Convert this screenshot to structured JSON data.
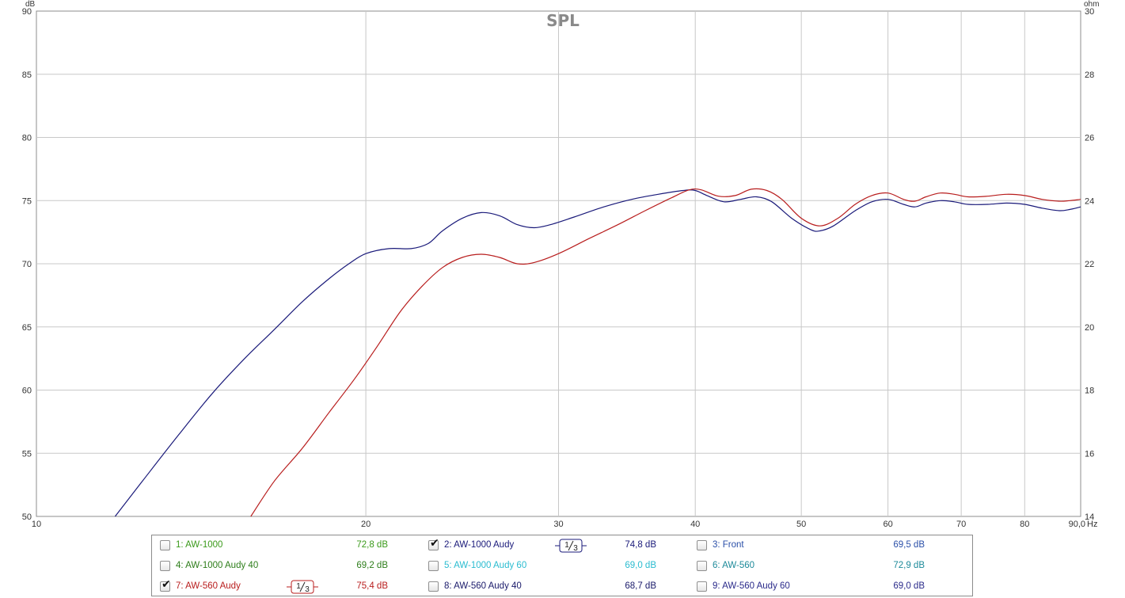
{
  "chart_data": {
    "type": "line",
    "title": "SPL",
    "x_scale": "log",
    "xlim": [
      10,
      90
    ],
    "x_ticks": [
      10,
      20,
      30,
      40,
      50,
      60,
      70,
      80
    ],
    "x_tick_labels": [
      "10",
      "20",
      "30",
      "40",
      "50",
      "60",
      "70",
      "80"
    ],
    "x_end_label": "90,0",
    "x_unit": "Hz",
    "ylim": [
      50,
      90
    ],
    "y_ticks": [
      50,
      55,
      60,
      65,
      70,
      75,
      80,
      85,
      90
    ],
    "y_unit": "dB",
    "y2lim": [
      14,
      30
    ],
    "y2_ticks": [
      14,
      16,
      18,
      20,
      22,
      24,
      26,
      28,
      30
    ],
    "y2_unit": "ohm",
    "grid": true,
    "series": [
      {
        "name": "2: AW-1000 Audy",
        "color": "#1a1a7a",
        "points": [
          [
            11.8,
            50
          ],
          [
            12.5,
            52.8
          ],
          [
            13.5,
            56.5
          ],
          [
            14.5,
            59.8
          ],
          [
            15.5,
            62.5
          ],
          [
            16.5,
            64.8
          ],
          [
            17.5,
            67
          ],
          [
            18.5,
            68.8
          ],
          [
            19.3,
            70
          ],
          [
            20,
            70.8
          ],
          [
            21,
            71.2
          ],
          [
            22,
            71.2
          ],
          [
            22.8,
            71.6
          ],
          [
            23.5,
            72.6
          ],
          [
            24.5,
            73.6
          ],
          [
            25.5,
            74.05
          ],
          [
            26.5,
            73.8
          ],
          [
            27.5,
            73.1
          ],
          [
            28.5,
            72.85
          ],
          [
            29.5,
            73.1
          ],
          [
            31,
            73.7
          ],
          [
            33,
            74.5
          ],
          [
            35,
            75.1
          ],
          [
            37,
            75.5
          ],
          [
            39,
            75.8
          ],
          [
            40,
            75.8
          ],
          [
            41,
            75.4
          ],
          [
            42.5,
            74.9
          ],
          [
            44,
            75.1
          ],
          [
            45.5,
            75.3
          ],
          [
            47,
            74.9
          ],
          [
            49,
            73.6
          ],
          [
            51,
            72.7
          ],
          [
            52,
            72.6
          ],
          [
            53.5,
            73
          ],
          [
            56,
            74.2
          ],
          [
            58,
            74.9
          ],
          [
            60,
            75.1
          ],
          [
            62,
            74.7
          ],
          [
            63.5,
            74.5
          ],
          [
            65,
            74.8
          ],
          [
            67,
            75
          ],
          [
            69,
            74.9
          ],
          [
            71,
            74.7
          ],
          [
            74,
            74.7
          ],
          [
            77,
            74.8
          ],
          [
            80,
            74.7
          ],
          [
            83,
            74.4
          ],
          [
            86,
            74.2
          ],
          [
            88,
            74.3
          ],
          [
            90,
            74.5
          ]
        ]
      },
      {
        "name": "7: AW-560 Audy",
        "color": "#b81d1d",
        "points": [
          [
            15.7,
            50
          ],
          [
            16.5,
            52.8
          ],
          [
            17.5,
            55.4
          ],
          [
            18.5,
            58.2
          ],
          [
            19.5,
            60.8
          ],
          [
            20.5,
            63.5
          ],
          [
            21.5,
            66.2
          ],
          [
            22.5,
            68.2
          ],
          [
            23.5,
            69.7
          ],
          [
            24.5,
            70.5
          ],
          [
            25.5,
            70.75
          ],
          [
            26.5,
            70.5
          ],
          [
            27.5,
            70
          ],
          [
            28.5,
            70.1
          ],
          [
            30,
            70.8
          ],
          [
            32,
            72
          ],
          [
            34,
            73.1
          ],
          [
            36,
            74.2
          ],
          [
            38,
            75.2
          ],
          [
            39.5,
            75.85
          ],
          [
            40.5,
            75.85
          ],
          [
            42,
            75.35
          ],
          [
            43.5,
            75.4
          ],
          [
            45,
            75.9
          ],
          [
            46.5,
            75.8
          ],
          [
            48,
            75.1
          ],
          [
            50,
            73.6
          ],
          [
            52,
            73
          ],
          [
            54,
            73.6
          ],
          [
            56,
            74.7
          ],
          [
            58,
            75.4
          ],
          [
            60,
            75.6
          ],
          [
            62,
            75.1
          ],
          [
            63.5,
            74.95
          ],
          [
            65,
            75.3
          ],
          [
            67,
            75.6
          ],
          [
            69,
            75.5
          ],
          [
            71,
            75.3
          ],
          [
            74,
            75.35
          ],
          [
            77,
            75.5
          ],
          [
            80,
            75.4
          ],
          [
            83,
            75.1
          ],
          [
            86,
            74.95
          ],
          [
            88,
            75
          ],
          [
            90,
            75.1
          ]
        ]
      }
    ]
  },
  "legend": {
    "items": [
      {
        "label": "1: AW-1000",
        "value": "72,8 dB",
        "checked": false,
        "color": "#3a9a1a",
        "smoothing": ""
      },
      {
        "label": "2: AW-1000 Audy",
        "value": "74,8 dB",
        "checked": true,
        "color": "#1a1a7a",
        "smoothing": "1/3"
      },
      {
        "label": "3: Front",
        "value": "69,5 dB",
        "checked": false,
        "color": "#2a4fa8",
        "smoothing": ""
      },
      {
        "label": "4: AW-1000 Audy 40",
        "value": "69,2 dB",
        "checked": false,
        "color": "#2d7d1a",
        "smoothing": ""
      },
      {
        "label": "5: AW-1000 Audy 60",
        "value": "69,0 dB",
        "checked": false,
        "color": "#2abcd0",
        "smoothing": ""
      },
      {
        "label": "6: AW-560",
        "value": "72,9 dB",
        "checked": false,
        "color": "#1d8a9a",
        "smoothing": ""
      },
      {
        "label": "7: AW-560 Audy",
        "value": "75,4 dB",
        "checked": true,
        "color": "#b81d1d",
        "smoothing": "1/3"
      },
      {
        "label": "8: AW-560 Audy 40",
        "value": "68,7 dB",
        "checked": false,
        "color": "#1a1a6a",
        "smoothing": ""
      },
      {
        "label": "9: AW-560 Audy 60",
        "value": "69,0 dB",
        "checked": false,
        "color": "#2a2a8a",
        "smoothing": ""
      }
    ]
  }
}
